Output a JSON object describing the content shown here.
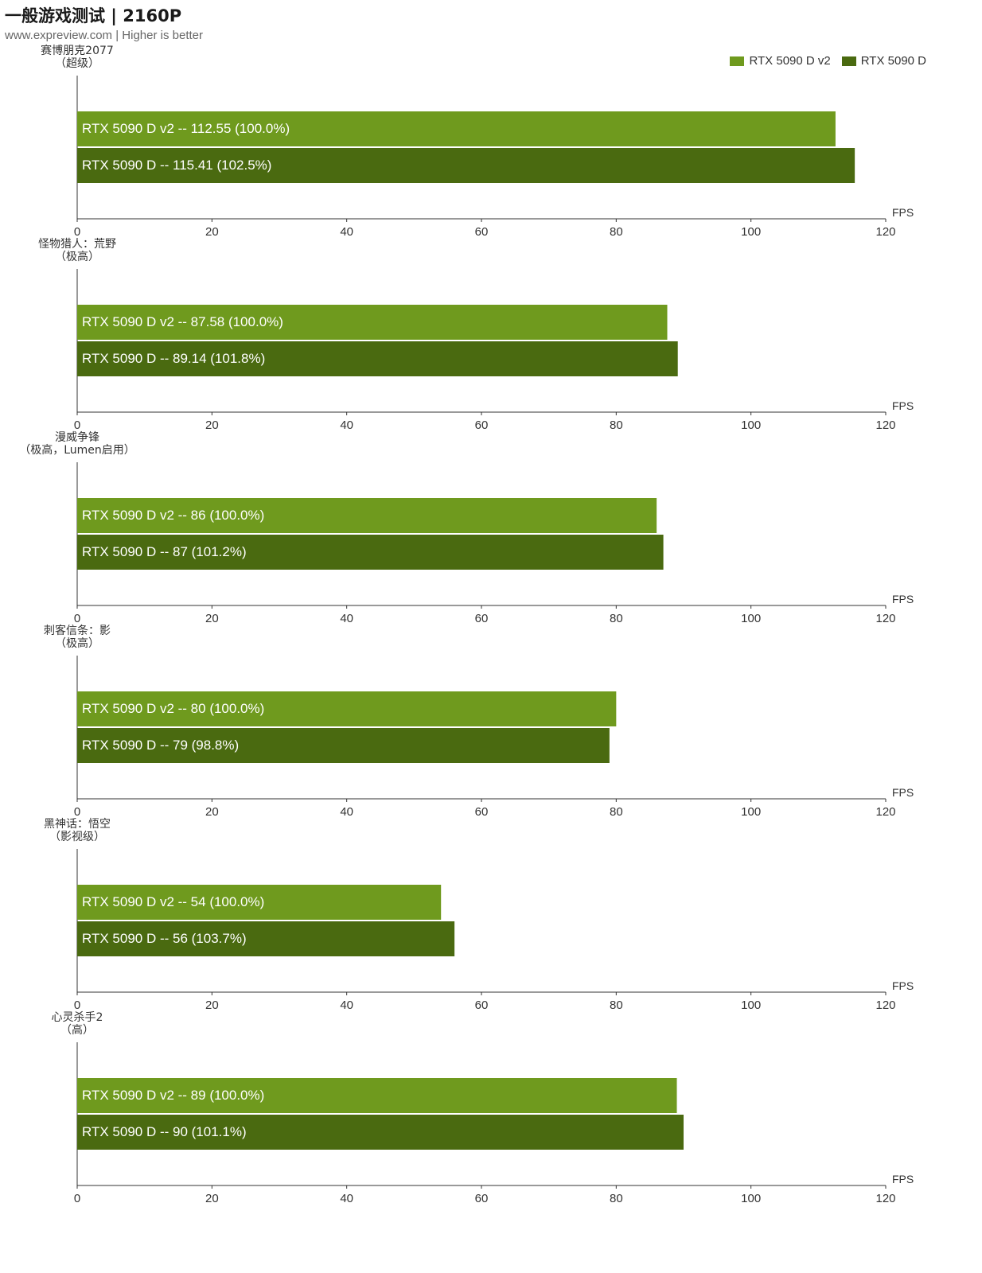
{
  "title": "一般游戏测试 | 2160P",
  "subtitle": "www.expreview.com | Higher is better",
  "colors": {
    "v2": "#6f9a1e",
    "d": "#4a6a10"
  },
  "legend": [
    {
      "label": "RTX 5090 D v2",
      "color": "#6f9a1e"
    },
    {
      "label": "RTX 5090 D",
      "color": "#4a6a10"
    }
  ],
  "chart_data": {
    "type": "bar",
    "orientation": "horizontal",
    "x_unit": "FPS",
    "xlim": [
      0,
      120
    ],
    "x_ticks": [
      "0",
      "20",
      "40",
      "60",
      "80",
      "100",
      "120"
    ],
    "legend_position": "top-right",
    "groups": [
      {
        "game": "赛博朋克2077",
        "setting": "（超级）",
        "bars": [
          {
            "series": "RTX 5090 D v2",
            "value": 112.55,
            "label": "RTX 5090 D v2  --  112.55 (100.0%)"
          },
          {
            "series": "RTX 5090 D",
            "value": 115.41,
            "label": "RTX 5090 D  --  115.41 (102.5%)"
          }
        ]
      },
      {
        "game": "怪物猎人：荒野",
        "setting": "（极高）",
        "bars": [
          {
            "series": "RTX 5090 D v2",
            "value": 87.58,
            "label": "RTX 5090 D v2  --  87.58 (100.0%)"
          },
          {
            "series": "RTX 5090 D",
            "value": 89.14,
            "label": "RTX 5090 D  --  89.14 (101.8%)"
          }
        ]
      },
      {
        "game": "漫威争锋",
        "setting": "（极高，Lumen启用）",
        "bars": [
          {
            "series": "RTX 5090 D v2",
            "value": 86,
            "label": "RTX 5090 D v2  --  86 (100.0%)"
          },
          {
            "series": "RTX 5090 D",
            "value": 87,
            "label": "RTX 5090 D  --  87 (101.2%)"
          }
        ]
      },
      {
        "game": "刺客信条：影",
        "setting": "（极高）",
        "bars": [
          {
            "series": "RTX 5090 D v2",
            "value": 80,
            "label": "RTX 5090 D v2  --  80 (100.0%)"
          },
          {
            "series": "RTX 5090 D",
            "value": 79,
            "label": "RTX 5090 D  --  79 (98.8%)"
          }
        ]
      },
      {
        "game": "黑神话：悟空",
        "setting": "（影视级）",
        "bars": [
          {
            "series": "RTX 5090 D v2",
            "value": 54,
            "label": "RTX 5090 D v2  --  54 (100.0%)"
          },
          {
            "series": "RTX 5090 D",
            "value": 56,
            "label": "RTX 5090 D  --  56 (103.7%)"
          }
        ]
      },
      {
        "game": "心灵杀手2",
        "setting": "（高）",
        "bars": [
          {
            "series": "RTX 5090 D v2",
            "value": 89,
            "label": "RTX 5090 D v2  --  89 (100.0%)"
          },
          {
            "series": "RTX 5090 D",
            "value": 90,
            "label": "RTX 5090 D  --  90 (101.1%)"
          }
        ]
      }
    ]
  }
}
